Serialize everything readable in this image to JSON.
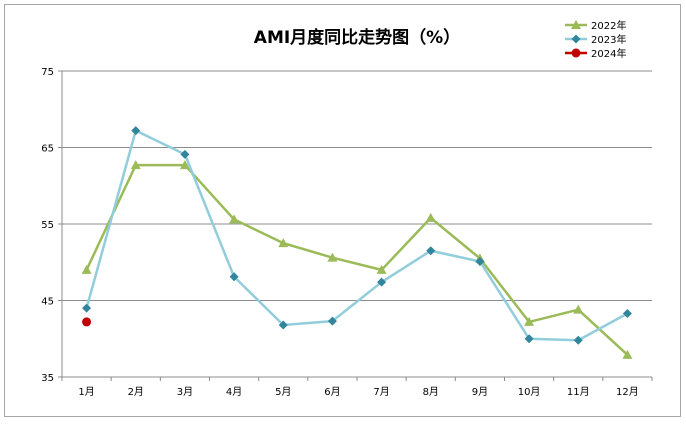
{
  "chart_data": {
    "type": "line",
    "title": "AMI月度同比走势图（%）",
    "xlabel": "",
    "ylabel": "",
    "categories": [
      "1月",
      "2月",
      "3月",
      "4月",
      "5月",
      "6月",
      "7月",
      "8月",
      "9月",
      "10月",
      "11月",
      "12月"
    ],
    "ylim": [
      35,
      75
    ],
    "yticks": [
      35,
      45,
      55,
      65,
      75
    ],
    "grid": true,
    "legend": "top-right",
    "series": [
      {
        "name": "2022年",
        "color": "#9bbb59",
        "marker": "triangle",
        "values": [
          49.0,
          62.7,
          62.7,
          55.6,
          52.5,
          50.6,
          49.0,
          55.8,
          50.5,
          42.2,
          43.8,
          37.9
        ]
      },
      {
        "name": "2023年",
        "color": "#92cddc",
        "marker_color": "#31859c",
        "marker": "diamond",
        "values": [
          44.0,
          67.2,
          64.1,
          48.1,
          41.8,
          42.3,
          47.4,
          51.5,
          50.1,
          40.0,
          39.8,
          43.3
        ]
      },
      {
        "name": "2024年",
        "color": "#c00000",
        "marker": "circle",
        "values": [
          42.2,
          null,
          null,
          null,
          null,
          null,
          null,
          null,
          null,
          null,
          null,
          null
        ]
      }
    ]
  }
}
